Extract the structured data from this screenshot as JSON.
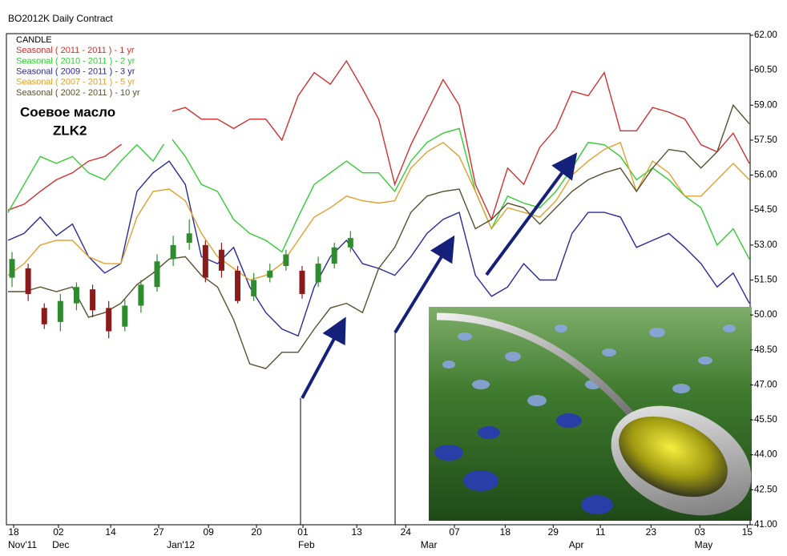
{
  "chart_data": {
    "type": "line",
    "title": "BO2012K Daily Contract",
    "annotations": [
      "Соевое масло",
      "ZLK2"
    ],
    "x": [
      0,
      1,
      2,
      3,
      4,
      5,
      6,
      7,
      8,
      9,
      10,
      11,
      12,
      13,
      14,
      15,
      16,
      17,
      18,
      19,
      20,
      21,
      22,
      23,
      24,
      25,
      26,
      27,
      28,
      29,
      30,
      31,
      32,
      33,
      34,
      35,
      36,
      37,
      38,
      39,
      40,
      41,
      42,
      43,
      44,
      45,
      46
    ],
    "xlim": [
      0,
      46
    ],
    "xticks": [
      {
        "value": 0.35,
        "label": "18"
      },
      {
        "value": 3.13,
        "label": "02"
      },
      {
        "value": 6.37,
        "label": "14"
      },
      {
        "value": 9.35,
        "label": "27"
      },
      {
        "value": 12.44,
        "label": "09"
      },
      {
        "value": 15.42,
        "label": "20"
      },
      {
        "value": 18.3,
        "label": "01"
      },
      {
        "value": 21.64,
        "label": "13"
      },
      {
        "value": 24.68,
        "label": "24"
      },
      {
        "value": 27.7,
        "label": "07"
      },
      {
        "value": 30.85,
        "label": "18"
      },
      {
        "value": 33.83,
        "label": "29"
      },
      {
        "value": 36.76,
        "label": "11"
      },
      {
        "value": 39.9,
        "label": "23"
      },
      {
        "value": 42.93,
        "label": "03"
      },
      {
        "value": 45.87,
        "label": "15"
      }
    ],
    "month_labels": [
      {
        "value": 0,
        "label": "Nov'11"
      },
      {
        "value": 2.74,
        "label": "Dec"
      },
      {
        "value": 9.85,
        "label": "Jan'12"
      },
      {
        "value": 18.0,
        "label": "Feb"
      },
      {
        "value": 25.6,
        "label": "Mar"
      },
      {
        "value": 34.8,
        "label": "Apr"
      },
      {
        "value": 42.6,
        "label": "May"
      }
    ],
    "ylim": [
      41,
      62
    ],
    "yticks": [
      {
        "value": 41,
        "label": "41.00"
      },
      {
        "value": 42.5,
        "label": "42.50"
      },
      {
        "value": 44,
        "label": "44.00"
      },
      {
        "value": 45.5,
        "label": "45.50"
      },
      {
        "value": 47,
        "label": "47.00"
      },
      {
        "value": 48.5,
        "label": "48.50"
      },
      {
        "value": 50,
        "label": "50.00"
      },
      {
        "value": 51.5,
        "label": "51.50"
      },
      {
        "value": 53,
        "label": "53.00"
      },
      {
        "value": 54.5,
        "label": "54.50"
      },
      {
        "value": 56,
        "label": "56.00"
      },
      {
        "value": 57.5,
        "label": "57.50"
      },
      {
        "value": 59,
        "label": "59.00"
      },
      {
        "value": 60.5,
        "label": "60.50"
      },
      {
        "value": 62,
        "label": "62.00"
      }
    ],
    "grid": false,
    "candles": {
      "name": "CANDLE",
      "up_color": "#2e8b2e",
      "down_color": "#8b1a1a",
      "x": [
        0.25,
        1.25,
        2.25,
        3.25,
        4.25,
        5.25,
        6.25,
        7.25,
        8.25,
        9.25,
        10.25,
        11.25,
        12.25,
        13.25,
        14.25,
        15.25,
        16.25,
        17.25,
        18.25,
        19.25,
        20.25,
        21.25
      ],
      "open": [
        51.6,
        52.0,
        50.3,
        49.7,
        50.5,
        51.1,
        50.3,
        49.5,
        50.4,
        51.2,
        52.4,
        53.1,
        53.0,
        52.8,
        51.9,
        50.8,
        51.6,
        52.1,
        51.9,
        51.4,
        52.2,
        52.9
      ],
      "high": [
        52.7,
        52.2,
        50.5,
        50.9,
        51.4,
        51.3,
        50.6,
        50.7,
        51.5,
        52.6,
        53.4,
        54.1,
        53.2,
        53.1,
        52.1,
        51.8,
        52.2,
        52.8,
        52.1,
        52.5,
        53.1,
        53.6
      ],
      "low": [
        51.2,
        50.6,
        49.4,
        49.3,
        50.2,
        49.9,
        49.0,
        49.3,
        50.1,
        51.0,
        52.1,
        52.8,
        51.4,
        51.6,
        50.5,
        50.6,
        51.4,
        51.9,
        50.7,
        51.2,
        52.0,
        52.7
      ],
      "close": [
        52.4,
        50.9,
        49.6,
        50.6,
        51.2,
        50.2,
        49.3,
        50.4,
        51.3,
        52.3,
        53.0,
        53.5,
        51.6,
        51.9,
        50.6,
        51.5,
        51.9,
        52.6,
        50.9,
        52.2,
        52.9,
        53.3
      ]
    },
    "series": [
      {
        "name": "Seasonal ( 2011 - 2011 ) - 1 yr",
        "color": "#d03030",
        "values": [
          54.5,
          54.75,
          55.3,
          55.8,
          56.1,
          56.6,
          56.8,
          57.3,
          58.0,
          58.5,
          58.7,
          58.9,
          58.4,
          58.4,
          58.0,
          58.4,
          58.4,
          57.5,
          59.4,
          60.4,
          59.9,
          60.9,
          59.7,
          58.4,
          55.6,
          57.3,
          58.7,
          60.1,
          59.0,
          55.6,
          54.1,
          56.3,
          55.6,
          57.2,
          58.0,
          59.6,
          59.4,
          60.4,
          57.9,
          57.9,
          58.9,
          58.7,
          58.4,
          57.3,
          57.0,
          57.8,
          56.5
        ]
      },
      {
        "name": "Seasonal ( 2010 - 2011 ) - 2 yr",
        "color": "#33cc33",
        "values": [
          54.4,
          55.6,
          56.8,
          56.5,
          56.8,
          56.1,
          55.8,
          56.6,
          57.3,
          56.6,
          57.7,
          56.8,
          55.6,
          55.3,
          54.1,
          53.5,
          53.2,
          52.7,
          54.2,
          55.6,
          56.1,
          56.6,
          56.1,
          56.1,
          55.3,
          56.6,
          57.4,
          57.8,
          58.0,
          55.3,
          53.7,
          55.1,
          54.8,
          54.6,
          55.3,
          56.3,
          57.4,
          57.3,
          56.8,
          55.8,
          56.3,
          55.8,
          55.1,
          54.6,
          53.0,
          53.7,
          52.4
        ]
      },
      {
        "name": "Seasonal ( 2009 - 2011 ) - 3 yr",
        "color": "#2a2a9a",
        "values": [
          53.2,
          53.5,
          54.2,
          53.4,
          53.9,
          52.5,
          51.8,
          52.2,
          55.3,
          56.1,
          56.6,
          55.6,
          52.5,
          52.2,
          52.9,
          51.2,
          50.1,
          49.4,
          49.1,
          51.2,
          52.5,
          53.2,
          52.2,
          52.0,
          51.7,
          52.5,
          53.5,
          54.1,
          54.4,
          51.7,
          50.8,
          51.2,
          52.2,
          51.5,
          51.5,
          53.5,
          54.4,
          54.4,
          54.2,
          52.9,
          53.2,
          53.5,
          52.9,
          52.2,
          51.2,
          51.8,
          50.5
        ]
      },
      {
        "name": "Seasonal ( 2007 - 2011 ) - 5 yr",
        "color": "#e0a030",
        "values": [
          51.7,
          52.2,
          53.0,
          53.2,
          53.2,
          52.5,
          52.2,
          52.2,
          54.2,
          55.3,
          55.4,
          54.9,
          53.5,
          52.5,
          52.0,
          51.5,
          51.7,
          52.2,
          53.2,
          54.2,
          54.6,
          55.1,
          54.9,
          54.8,
          54.9,
          56.3,
          57.0,
          57.4,
          56.8,
          55.3,
          53.7,
          54.6,
          54.4,
          54.2,
          54.9,
          56.0,
          56.6,
          57.1,
          57.4,
          55.3,
          56.6,
          56.1,
          55.1,
          55.1,
          55.8,
          56.5,
          55.8
        ]
      },
      {
        "name": "Seasonal ( 2002 - 2011 ) - 10 yr",
        "color": "#5a5030",
        "values": [
          51.0,
          51.0,
          51.2,
          51.0,
          51.2,
          49.9,
          50.1,
          50.5,
          51.3,
          51.8,
          52.4,
          52.5,
          51.7,
          51.2,
          49.8,
          47.9,
          47.7,
          48.4,
          48.4,
          49.4,
          50.3,
          50.5,
          50.1,
          52.0,
          52.9,
          54.4,
          55.1,
          55.3,
          55.4,
          53.7,
          54.1,
          54.8,
          54.6,
          53.9,
          54.6,
          55.3,
          55.8,
          56.1,
          56.3,
          55.3,
          56.3,
          57.1,
          57.0,
          56.3,
          57.0,
          59.0,
          58.2
        ]
      }
    ]
  }
}
